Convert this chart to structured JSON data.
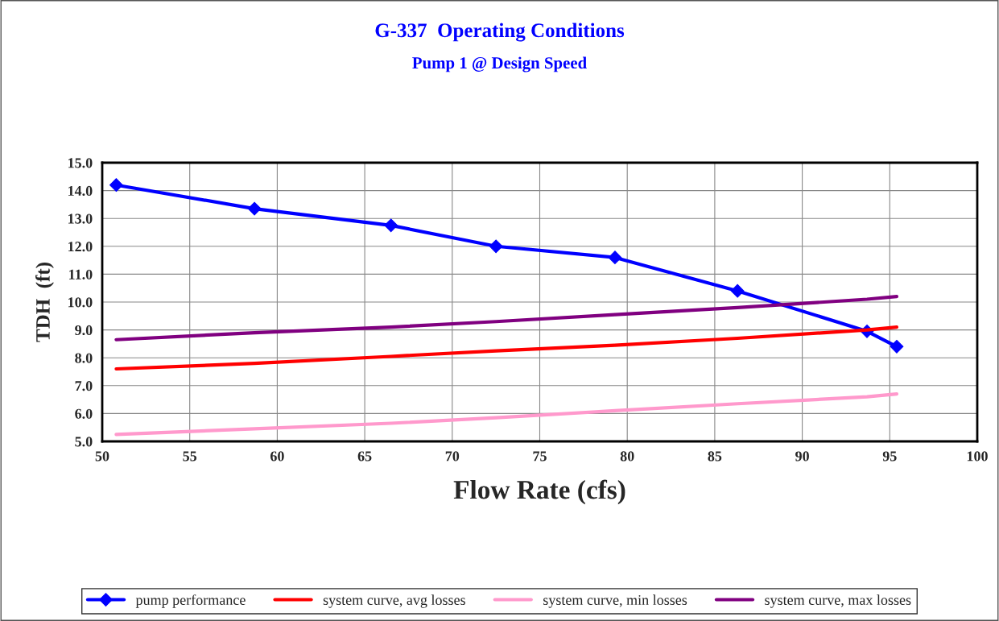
{
  "chart_data": {
    "type": "line",
    "title": "G-337  Operating Conditions",
    "subtitle": "Pump 1 @ Design Speed",
    "xlabel": "Flow Rate (cfs)",
    "ylabel": "TDH  (ft)",
    "x": [
      50.8,
      58.7,
      66.5,
      72.5,
      79.3,
      86.3,
      93.7,
      95.4
    ],
    "series": [
      {
        "name": "pump performance",
        "color": "#0000ff",
        "marker": "diamond",
        "values": [
          14.2,
          13.35,
          12.75,
          12.0,
          11.6,
          10.4,
          8.95,
          8.4
        ]
      },
      {
        "name": "system curve, avg losses",
        "color": "#ff0000",
        "values": [
          7.6,
          7.8,
          8.05,
          8.25,
          8.45,
          8.7,
          9.0,
          9.1
        ]
      },
      {
        "name": "system curve, min losses",
        "color": "#ff99cc",
        "values": [
          5.25,
          5.45,
          5.65,
          5.85,
          6.1,
          6.35,
          6.6,
          6.7
        ]
      },
      {
        "name": "system curve, max losses",
        "color": "#800080",
        "values": [
          8.65,
          8.9,
          9.1,
          9.3,
          9.55,
          9.8,
          10.1,
          10.2
        ]
      }
    ],
    "xlim": [
      50,
      100
    ],
    "xticks": [
      50,
      55,
      60,
      65,
      70,
      75,
      80,
      85,
      90,
      95,
      100
    ],
    "ylim": [
      5,
      15
    ],
    "yticks": [
      {
        "value": 5,
        "label": "5.0"
      },
      {
        "value": 6,
        "label": "6.0"
      },
      {
        "value": 7,
        "label": "7.0"
      },
      {
        "value": 8,
        "label": "8.0"
      },
      {
        "value": 9,
        "label": "9.0"
      },
      {
        "value": 10,
        "label": "10.0"
      },
      {
        "value": 11,
        "label": "11.0"
      },
      {
        "value": 12,
        "label": "12.0"
      },
      {
        "value": 13,
        "label": "13.0"
      },
      {
        "value": 14,
        "label": "14.0"
      },
      {
        "value": 15,
        "label": "15.0"
      }
    ],
    "grid": true,
    "legend": "bottom",
    "line_style": "solid"
  }
}
